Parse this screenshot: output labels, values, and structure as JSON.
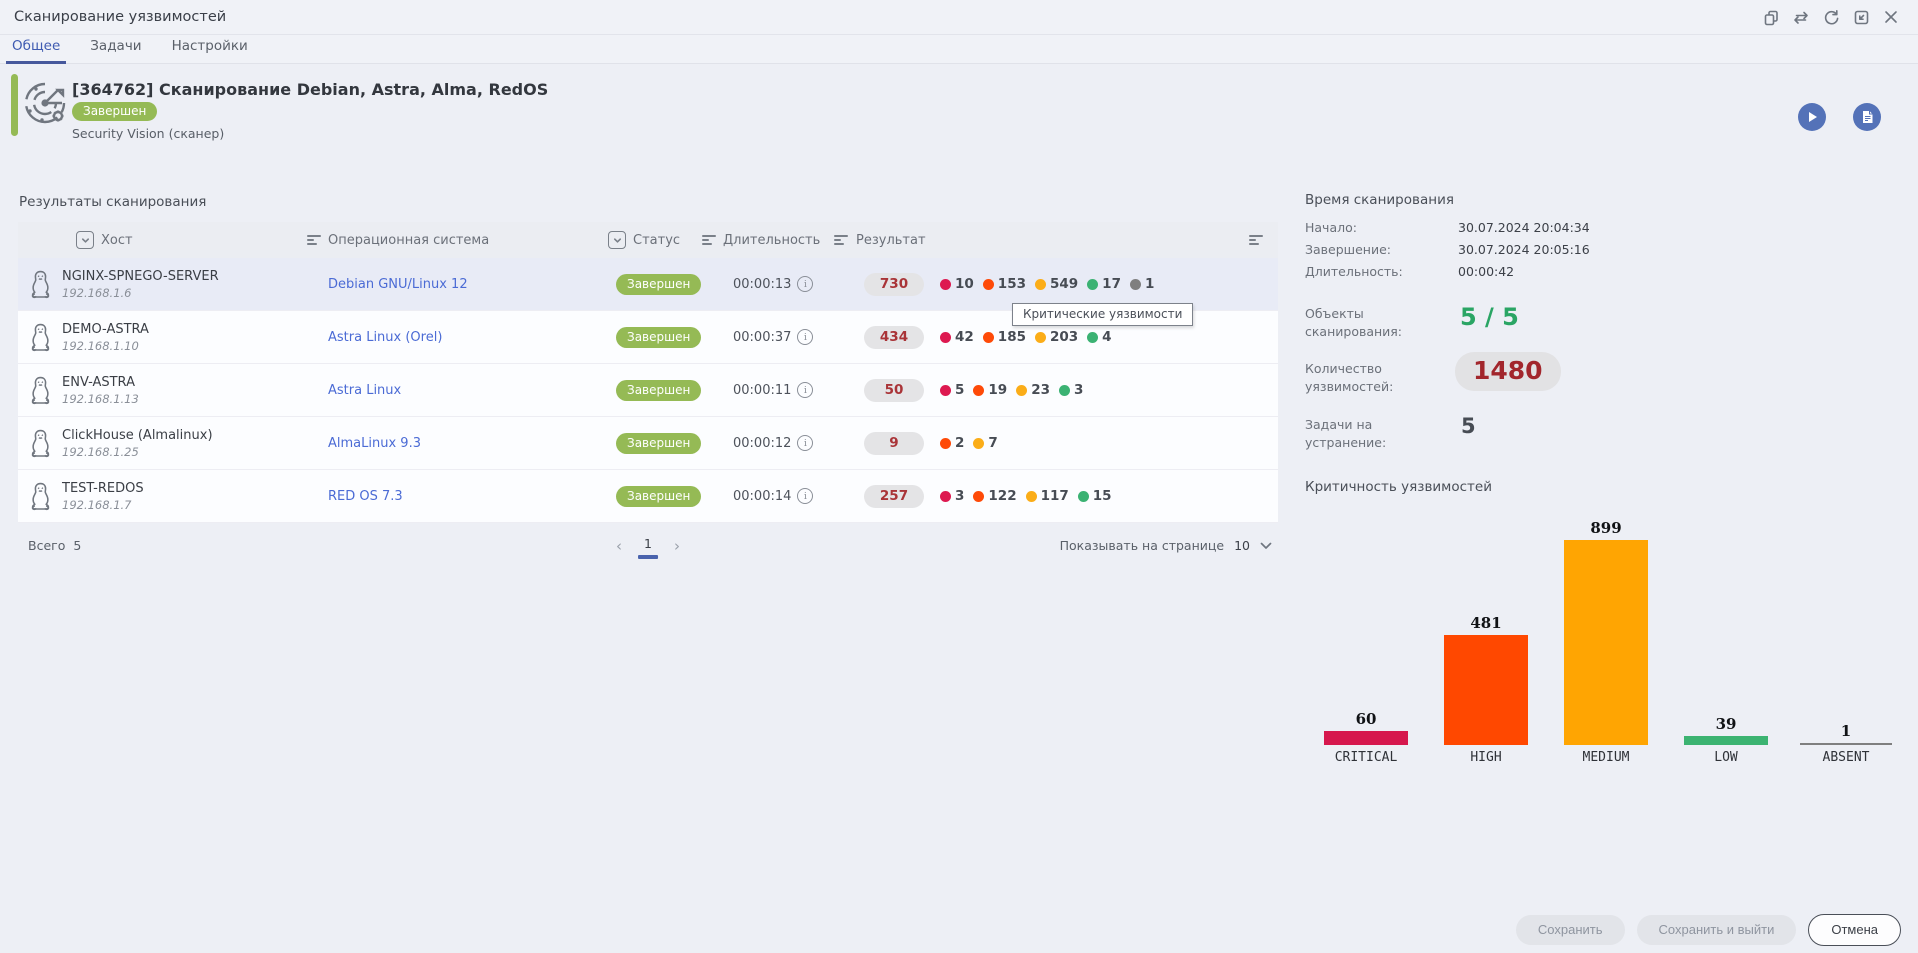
{
  "colors": {
    "accent_green": "#95ba55",
    "link_blue": "#4b6bd5",
    "total_red": "#a93438",
    "objects_green": "#2aa564",
    "vulns_red": "#a2262c",
    "severity": {
      "critical": "#dd1950",
      "high": "#fe4a08",
      "medium": "#fbad18",
      "low": "#3bb273",
      "absent": "#7f7f7f"
    }
  },
  "window": {
    "title": "Сканирование уязвимостей",
    "toolbar_icons": [
      "copy-icon",
      "repeat-icon",
      "refresh-icon",
      "collapse-icon",
      "close-icon"
    ]
  },
  "tabs": [
    {
      "label": "Общее",
      "active": true
    },
    {
      "label": "Задачи",
      "active": false
    },
    {
      "label": "Настройки",
      "active": false
    }
  ],
  "header": {
    "title": "[364762] Сканирование Debian, Astra, Alma, RedOS",
    "status_badge": "Завершен",
    "subtitle": "Security Vision (сканер)"
  },
  "results": {
    "section_title": "Результаты сканирования",
    "columns": {
      "host": "Хост",
      "os": "Операционная система",
      "status": "Статус",
      "duration": "Длительность",
      "result": "Результат"
    },
    "rows": [
      {
        "host": "NGINX-SPNEGO-SERVER",
        "ip": "192.168.1.6",
        "os": "Debian GNU/Linux 12",
        "status": "Завершен",
        "duration": "00:00:13",
        "total": "730",
        "selected": true,
        "counts": [
          {
            "severity": "critical",
            "value": "10"
          },
          {
            "severity": "high",
            "value": "153"
          },
          {
            "severity": "medium",
            "value": "549"
          },
          {
            "severity": "low",
            "value": "17"
          },
          {
            "severity": "absent",
            "value": "1"
          }
        ]
      },
      {
        "host": "DEMO-ASTRA",
        "ip": "192.168.1.10",
        "os": "Astra Linux (Orel)",
        "status": "Завершен",
        "duration": "00:00:37",
        "total": "434",
        "selected": false,
        "counts": [
          {
            "severity": "critical",
            "value": "42"
          },
          {
            "severity": "high",
            "value": "185"
          },
          {
            "severity": "medium",
            "value": "203"
          },
          {
            "severity": "low",
            "value": "4"
          }
        ]
      },
      {
        "host": "ENV-ASTRA",
        "ip": "192.168.1.13",
        "os": "Astra Linux",
        "status": "Завершен",
        "duration": "00:00:11",
        "total": "50",
        "selected": false,
        "counts": [
          {
            "severity": "critical",
            "value": "5"
          },
          {
            "severity": "high",
            "value": "19"
          },
          {
            "severity": "medium",
            "value": "23"
          },
          {
            "severity": "low",
            "value": "3"
          }
        ]
      },
      {
        "host": "ClickHouse (Almalinux)",
        "ip": "192.168.1.25",
        "os": "AlmaLinux 9.3",
        "status": "Завершен",
        "duration": "00:00:12",
        "total": "9",
        "selected": false,
        "counts": [
          {
            "severity": "high",
            "value": "2"
          },
          {
            "severity": "medium",
            "value": "7"
          }
        ]
      },
      {
        "host": "TEST-REDOS",
        "ip": "192.168.1.7",
        "os": "RED OS 7.3",
        "status": "Завершен",
        "duration": "00:00:14",
        "total": "257",
        "selected": false,
        "counts": [
          {
            "severity": "critical",
            "value": "3"
          },
          {
            "severity": "high",
            "value": "122"
          },
          {
            "severity": "medium",
            "value": "117"
          },
          {
            "severity": "low",
            "value": "15"
          }
        ]
      }
    ],
    "tooltip": "Критические уязвимости",
    "pagination": {
      "total_label": "Всего",
      "total_value": "5",
      "prev": "‹",
      "page": "1",
      "next": "›",
      "page_size_label": "Показывать на странице",
      "page_size": "10"
    }
  },
  "summary": {
    "scan_time_title": "Время сканирования",
    "items": [
      {
        "label": "Начало:",
        "value": "30.07.2024 20:04:34"
      },
      {
        "label": "Завершение:",
        "value": "30.07.2024 20:05:16"
      },
      {
        "label": "Длительность:",
        "value": "00:00:42"
      }
    ],
    "objects_label": "Объекты сканирования:",
    "objects_value": "5 / 5",
    "vulns_label": "Количество уязвимостей:",
    "vulns_value": "1480",
    "tasks_label": "Задачи на устранение:",
    "tasks_value": "5"
  },
  "chart_data": {
    "type": "bar",
    "title": "Критичность уязвимостей",
    "categories": [
      "CRITICAL",
      "HIGH",
      "MEDIUM",
      "LOW",
      "ABSENT"
    ],
    "values": [
      60,
      481,
      899,
      39,
      1
    ],
    "colors": [
      "#d6174d",
      "#ff4800",
      "#ffa502",
      "#3cb371",
      "#7f7f7f"
    ],
    "xlabel": "",
    "ylabel": "",
    "ylim": [
      0,
      899
    ],
    "grid": false,
    "legend": "none",
    "value_labels": true
  },
  "footer": {
    "save": "Сохранить",
    "save_exit": "Сохранить и выйти",
    "cancel": "Отмена"
  }
}
